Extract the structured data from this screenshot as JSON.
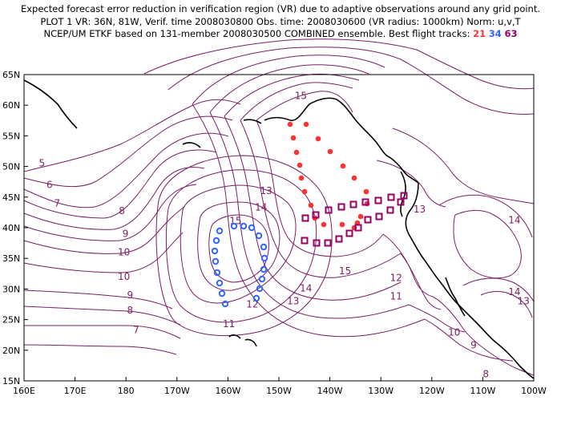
{
  "header": {
    "line1": "Expected forecast error reduction in verification region (VR) due to adaptive observations around any grid point.",
    "line2": "PLOT 1 VR: 36N, 81W, Verif. time 2008030800 Obs. time: 2008030600 (VR radius: 1000km) Norm: u,v,T",
    "line3_prefix": "NCEP/UM ETKF based on 131-member 2008030500 COMBINED ensemble.  Best flight tracks:",
    "flights": [
      {
        "label": "21",
        "color": "#ff3333"
      },
      {
        "label": "34",
        "color": "#3366ff"
      },
      {
        "label": "63",
        "color": "#990066"
      }
    ]
  },
  "map": {
    "lat_labels": [
      "65N",
      "60N",
      "55N",
      "50N",
      "45N",
      "40N",
      "35N",
      "30N",
      "25N",
      "20N",
      "15N"
    ],
    "lon_labels": [
      "160E",
      "170E",
      "180",
      "170W",
      "160W",
      "150W",
      "140W",
      "130W",
      "120W",
      "110W",
      "100W"
    ],
    "contour_color": "#7a1e66",
    "contour_labels": [
      {
        "text": "15",
        "lon": -145.7,
        "lat": 61.0
      },
      {
        "text": "5",
        "lon": 163.5,
        "lat": 50.0
      },
      {
        "text": "6",
        "lon": 165.0,
        "lat": 46.5
      },
      {
        "text": "7",
        "lon": 166.5,
        "lat": 43.5
      },
      {
        "text": "8",
        "lon": 179.2,
        "lat": 42.2
      },
      {
        "text": "9",
        "lon": 179.9,
        "lat": 38.5
      },
      {
        "text": "10",
        "lon": 179.6,
        "lat": 35.5
      },
      {
        "text": "10",
        "lon": 179.6,
        "lat": 31.5
      },
      {
        "text": "9",
        "lon": -179.2,
        "lat": 28.5
      },
      {
        "text": "8",
        "lon": -179.2,
        "lat": 26.0
      },
      {
        "text": "7",
        "lon": -178.0,
        "lat": 22.8
      },
      {
        "text": "13",
        "lon": -152.5,
        "lat": 45.5
      },
      {
        "text": "14",
        "lon": -153.5,
        "lat": 42.8
      },
      {
        "text": "15",
        "lon": -158.5,
        "lat": 40.6
      },
      {
        "text": "15",
        "lon": -137.0,
        "lat": 32.4
      },
      {
        "text": "14",
        "lon": -144.7,
        "lat": 29.6
      },
      {
        "text": "13",
        "lon": -147.2,
        "lat": 27.5
      },
      {
        "text": "12",
        "lon": -155.2,
        "lat": 27.0
      },
      {
        "text": "11",
        "lon": -159.8,
        "lat": 23.8
      },
      {
        "text": "12",
        "lon": -127.0,
        "lat": 31.3
      },
      {
        "text": "11",
        "lon": -127.0,
        "lat": 28.3
      },
      {
        "text": "13",
        "lon": -122.4,
        "lat": 42.5
      },
      {
        "text": "14",
        "lon": -103.8,
        "lat": 40.7
      },
      {
        "text": "14",
        "lon": -103.8,
        "lat": 29.0
      },
      {
        "text": "13",
        "lon": -102.0,
        "lat": 27.5
      },
      {
        "text": "10",
        "lon": -115.6,
        "lat": 22.4
      },
      {
        "text": "9",
        "lon": -111.8,
        "lat": 20.3
      },
      {
        "text": "8",
        "lon": -109.4,
        "lat": 15.6
      }
    ]
  }
}
